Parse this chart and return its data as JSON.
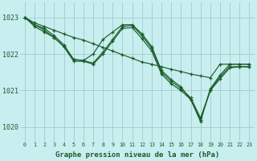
{
  "title": "Graphe pression niveau de la mer (hPa)",
  "bg_color": "#c8eef0",
  "grid_color": "#a0cccc",
  "line_color": "#1a5c28",
  "xlim": [
    -0.5,
    23.5
  ],
  "ylim": [
    1019.6,
    1023.4
  ],
  "yticks": [
    1020,
    1021,
    1022,
    1023
  ],
  "xticks": [
    0,
    1,
    2,
    3,
    4,
    5,
    6,
    7,
    8,
    9,
    10,
    11,
    12,
    13,
    14,
    15,
    16,
    17,
    18,
    19,
    20,
    21,
    22,
    23
  ],
  "s1": [
    1023.0,
    1022.85,
    1022.75,
    1022.65,
    1022.55,
    1022.45,
    1022.38,
    1022.28,
    1022.18,
    1022.08,
    1021.98,
    1021.88,
    1021.78,
    1021.72,
    1021.65,
    1021.58,
    1021.52,
    1021.45,
    1021.4,
    1021.35,
    1021.72,
    1021.72,
    1021.72,
    1021.72
  ],
  "s2": [
    1023.0,
    1022.8,
    1022.7,
    1022.5,
    1022.25,
    1021.85,
    1021.82,
    1022.0,
    1022.4,
    1022.6,
    1022.8,
    1022.8,
    1022.55,
    1022.2,
    1021.55,
    1021.3,
    1021.1,
    1020.75,
    1020.15,
    1021.05,
    1021.42,
    1021.72,
    1021.72,
    1021.72
  ],
  "s3": [
    1023.0,
    1022.8,
    1022.65,
    1022.45,
    1022.2,
    1021.85,
    1021.82,
    1021.75,
    1022.05,
    1022.4,
    1022.75,
    1022.78,
    1022.5,
    1022.15,
    1021.5,
    1021.25,
    1021.05,
    1020.8,
    1020.25,
    1021.0,
    1021.38,
    1021.65,
    1021.65,
    1021.65
  ],
  "s4": [
    1023.0,
    1022.75,
    1022.6,
    1022.45,
    1022.2,
    1021.8,
    1021.8,
    1021.72,
    1022.0,
    1022.35,
    1022.7,
    1022.72,
    1022.42,
    1022.08,
    1021.45,
    1021.18,
    1021.0,
    1020.75,
    1020.2,
    1021.0,
    1021.32,
    1021.62,
    1021.65,
    1021.65
  ]
}
